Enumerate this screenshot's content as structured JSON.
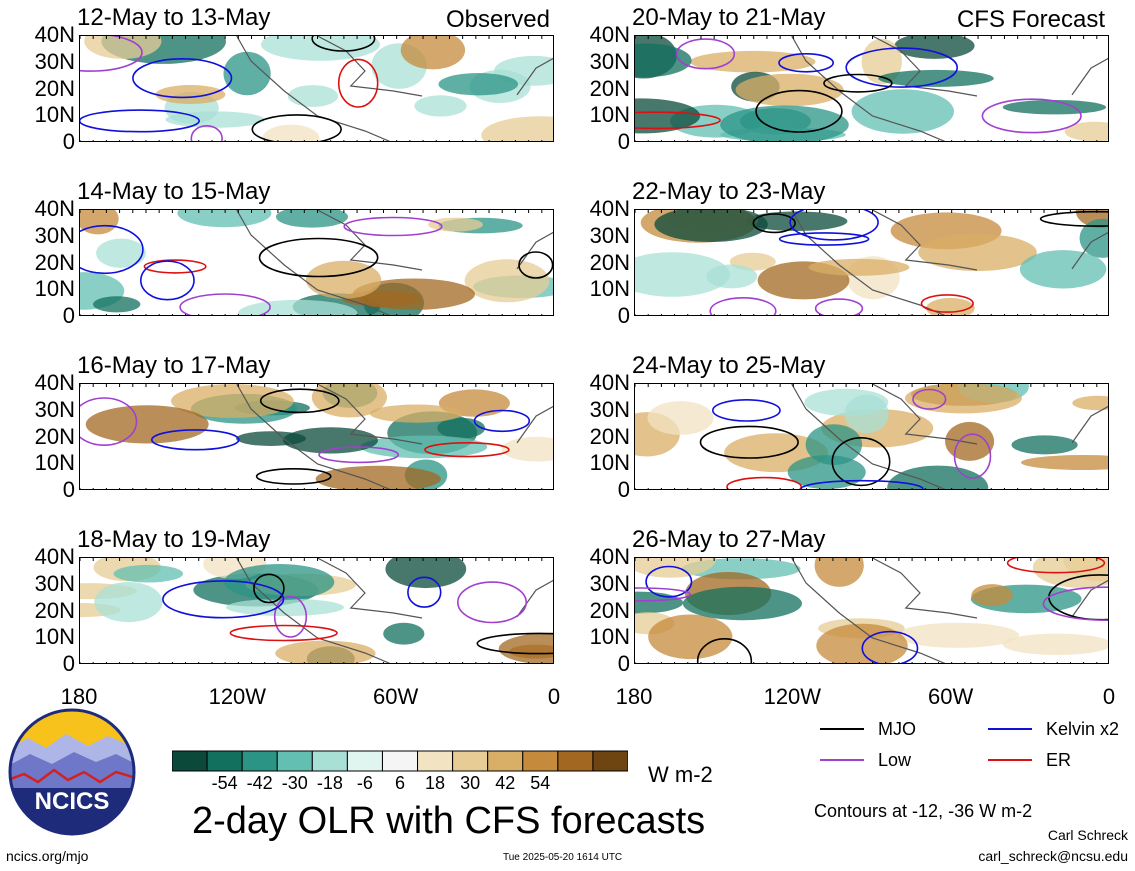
{
  "chart_data": {
    "type": "heatmap",
    "title": "2-day OLR with CFS forecasts",
    "units": "W m-2",
    "columns": [
      {
        "label": "Observed",
        "panels": [
          "12-May to 13-May",
          "14-May to 15-May",
          "16-May to 17-May",
          "18-May to 19-May"
        ]
      },
      {
        "label": "CFS Forecast",
        "panels": [
          "20-May to 21-May",
          "22-May to 23-May",
          "24-May to 25-May",
          "26-May to 27-May"
        ]
      }
    ],
    "y_ticks": [
      "40N",
      "30N",
      "20N",
      "10N",
      "0"
    ],
    "x_ticks": [
      "180",
      "120W",
      "60W",
      "0"
    ],
    "colorbar": {
      "ticks": [
        "-54",
        "-42",
        "-30",
        "-18",
        "-6",
        "6",
        "18",
        "30",
        "42",
        "54"
      ],
      "colors": [
        "#0b4a3b",
        "#11705e",
        "#2b9485",
        "#62bfb1",
        "#a8e0d6",
        "#e0f4f0",
        "#f5f5f5",
        "#f2e3c2",
        "#e7cc95",
        "#d9ae66",
        "#c58a3c",
        "#a26822",
        "#6e4410"
      ]
    },
    "legend": [
      {
        "label": "MJO",
        "color": "#000000"
      },
      {
        "label": "Kelvin x2",
        "color": "#1010dd"
      },
      {
        "label": "Low",
        "color": "#a040d0"
      },
      {
        "label": "ER",
        "color": "#dd1010"
      }
    ],
    "contour_note": "Contours at -12, -36 W m-2"
  },
  "footer": {
    "url": "ncics.org/mjo",
    "timestamp": "Tue 2025-05-20 1614 UTC",
    "author": "Carl Schreck",
    "email": "carl_schreck@ncsu.edu"
  },
  "logo": {
    "text": "NCICS"
  }
}
